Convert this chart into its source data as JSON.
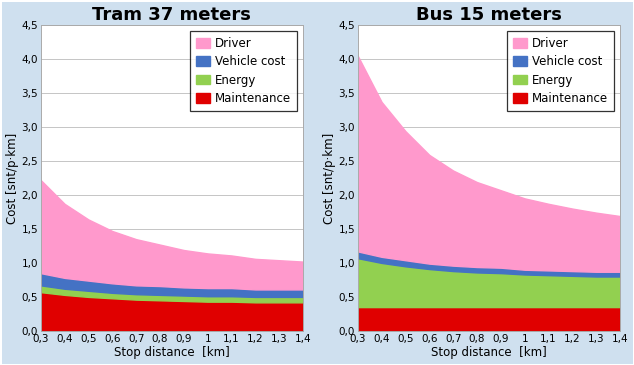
{
  "x": [
    0.3,
    0.4,
    0.5,
    0.6,
    0.7,
    0.8,
    0.9,
    1.0,
    1.1,
    1.2,
    1.3,
    1.4
  ],
  "tram": {
    "title": "Tram 37 meters",
    "maintenance": [
      0.57,
      0.53,
      0.5,
      0.48,
      0.46,
      0.45,
      0.44,
      0.43,
      0.43,
      0.42,
      0.42,
      0.42
    ],
    "energy": [
      0.1,
      0.09,
      0.09,
      0.08,
      0.08,
      0.08,
      0.08,
      0.08,
      0.08,
      0.08,
      0.08,
      0.08
    ],
    "vehicle": [
      0.18,
      0.16,
      0.15,
      0.14,
      0.13,
      0.13,
      0.12,
      0.12,
      0.12,
      0.11,
      0.11,
      0.11
    ],
    "driver": [
      1.37,
      1.09,
      0.9,
      0.77,
      0.68,
      0.61,
      0.55,
      0.51,
      0.48,
      0.45,
      0.43,
      0.41
    ]
  },
  "bus": {
    "title": "Bus 15 meters",
    "maintenance": [
      0.35,
      0.35,
      0.35,
      0.35,
      0.35,
      0.35,
      0.35,
      0.35,
      0.35,
      0.35,
      0.35,
      0.35
    ],
    "energy": [
      0.72,
      0.65,
      0.6,
      0.56,
      0.53,
      0.51,
      0.5,
      0.48,
      0.47,
      0.46,
      0.45,
      0.45
    ],
    "vehicle": [
      0.1,
      0.09,
      0.09,
      0.08,
      0.08,
      0.08,
      0.08,
      0.07,
      0.07,
      0.07,
      0.07,
      0.07
    ],
    "driver": [
      2.88,
      2.28,
      1.9,
      1.6,
      1.4,
      1.25,
      1.14,
      1.05,
      0.98,
      0.92,
      0.87,
      0.82
    ]
  },
  "colors": {
    "maintenance": "#e00000",
    "energy": "#92d050",
    "vehicle": "#4472c4",
    "driver": "#ff99cc"
  },
  "ylabel": "Cost [snt/p·km]",
  "xlabel": "Stop distance  [km]",
  "ylim": [
    0,
    4.5
  ],
  "yticks": [
    0.0,
    0.5,
    1.0,
    1.5,
    2.0,
    2.5,
    3.0,
    3.5,
    4.0,
    4.5
  ],
  "ytick_labels": [
    "0,0",
    "0,5",
    "1,0",
    "1,5",
    "2,0",
    "2,5",
    "3,0",
    "3,5",
    "4,0",
    "4,5"
  ],
  "xtick_labels": [
    "0,3",
    "0,4",
    "0,5",
    "0,6",
    "0,7",
    "0,8",
    "0,9",
    "1",
    "1,1",
    "1,2",
    "1,3",
    "1,4"
  ],
  "background_color": "#cfe0ef",
  "plot_bg_color": "#ffffff",
  "title_fontsize": 13,
  "label_fontsize": 8.5,
  "tick_fontsize": 7.5,
  "legend_fontsize": 8.5
}
